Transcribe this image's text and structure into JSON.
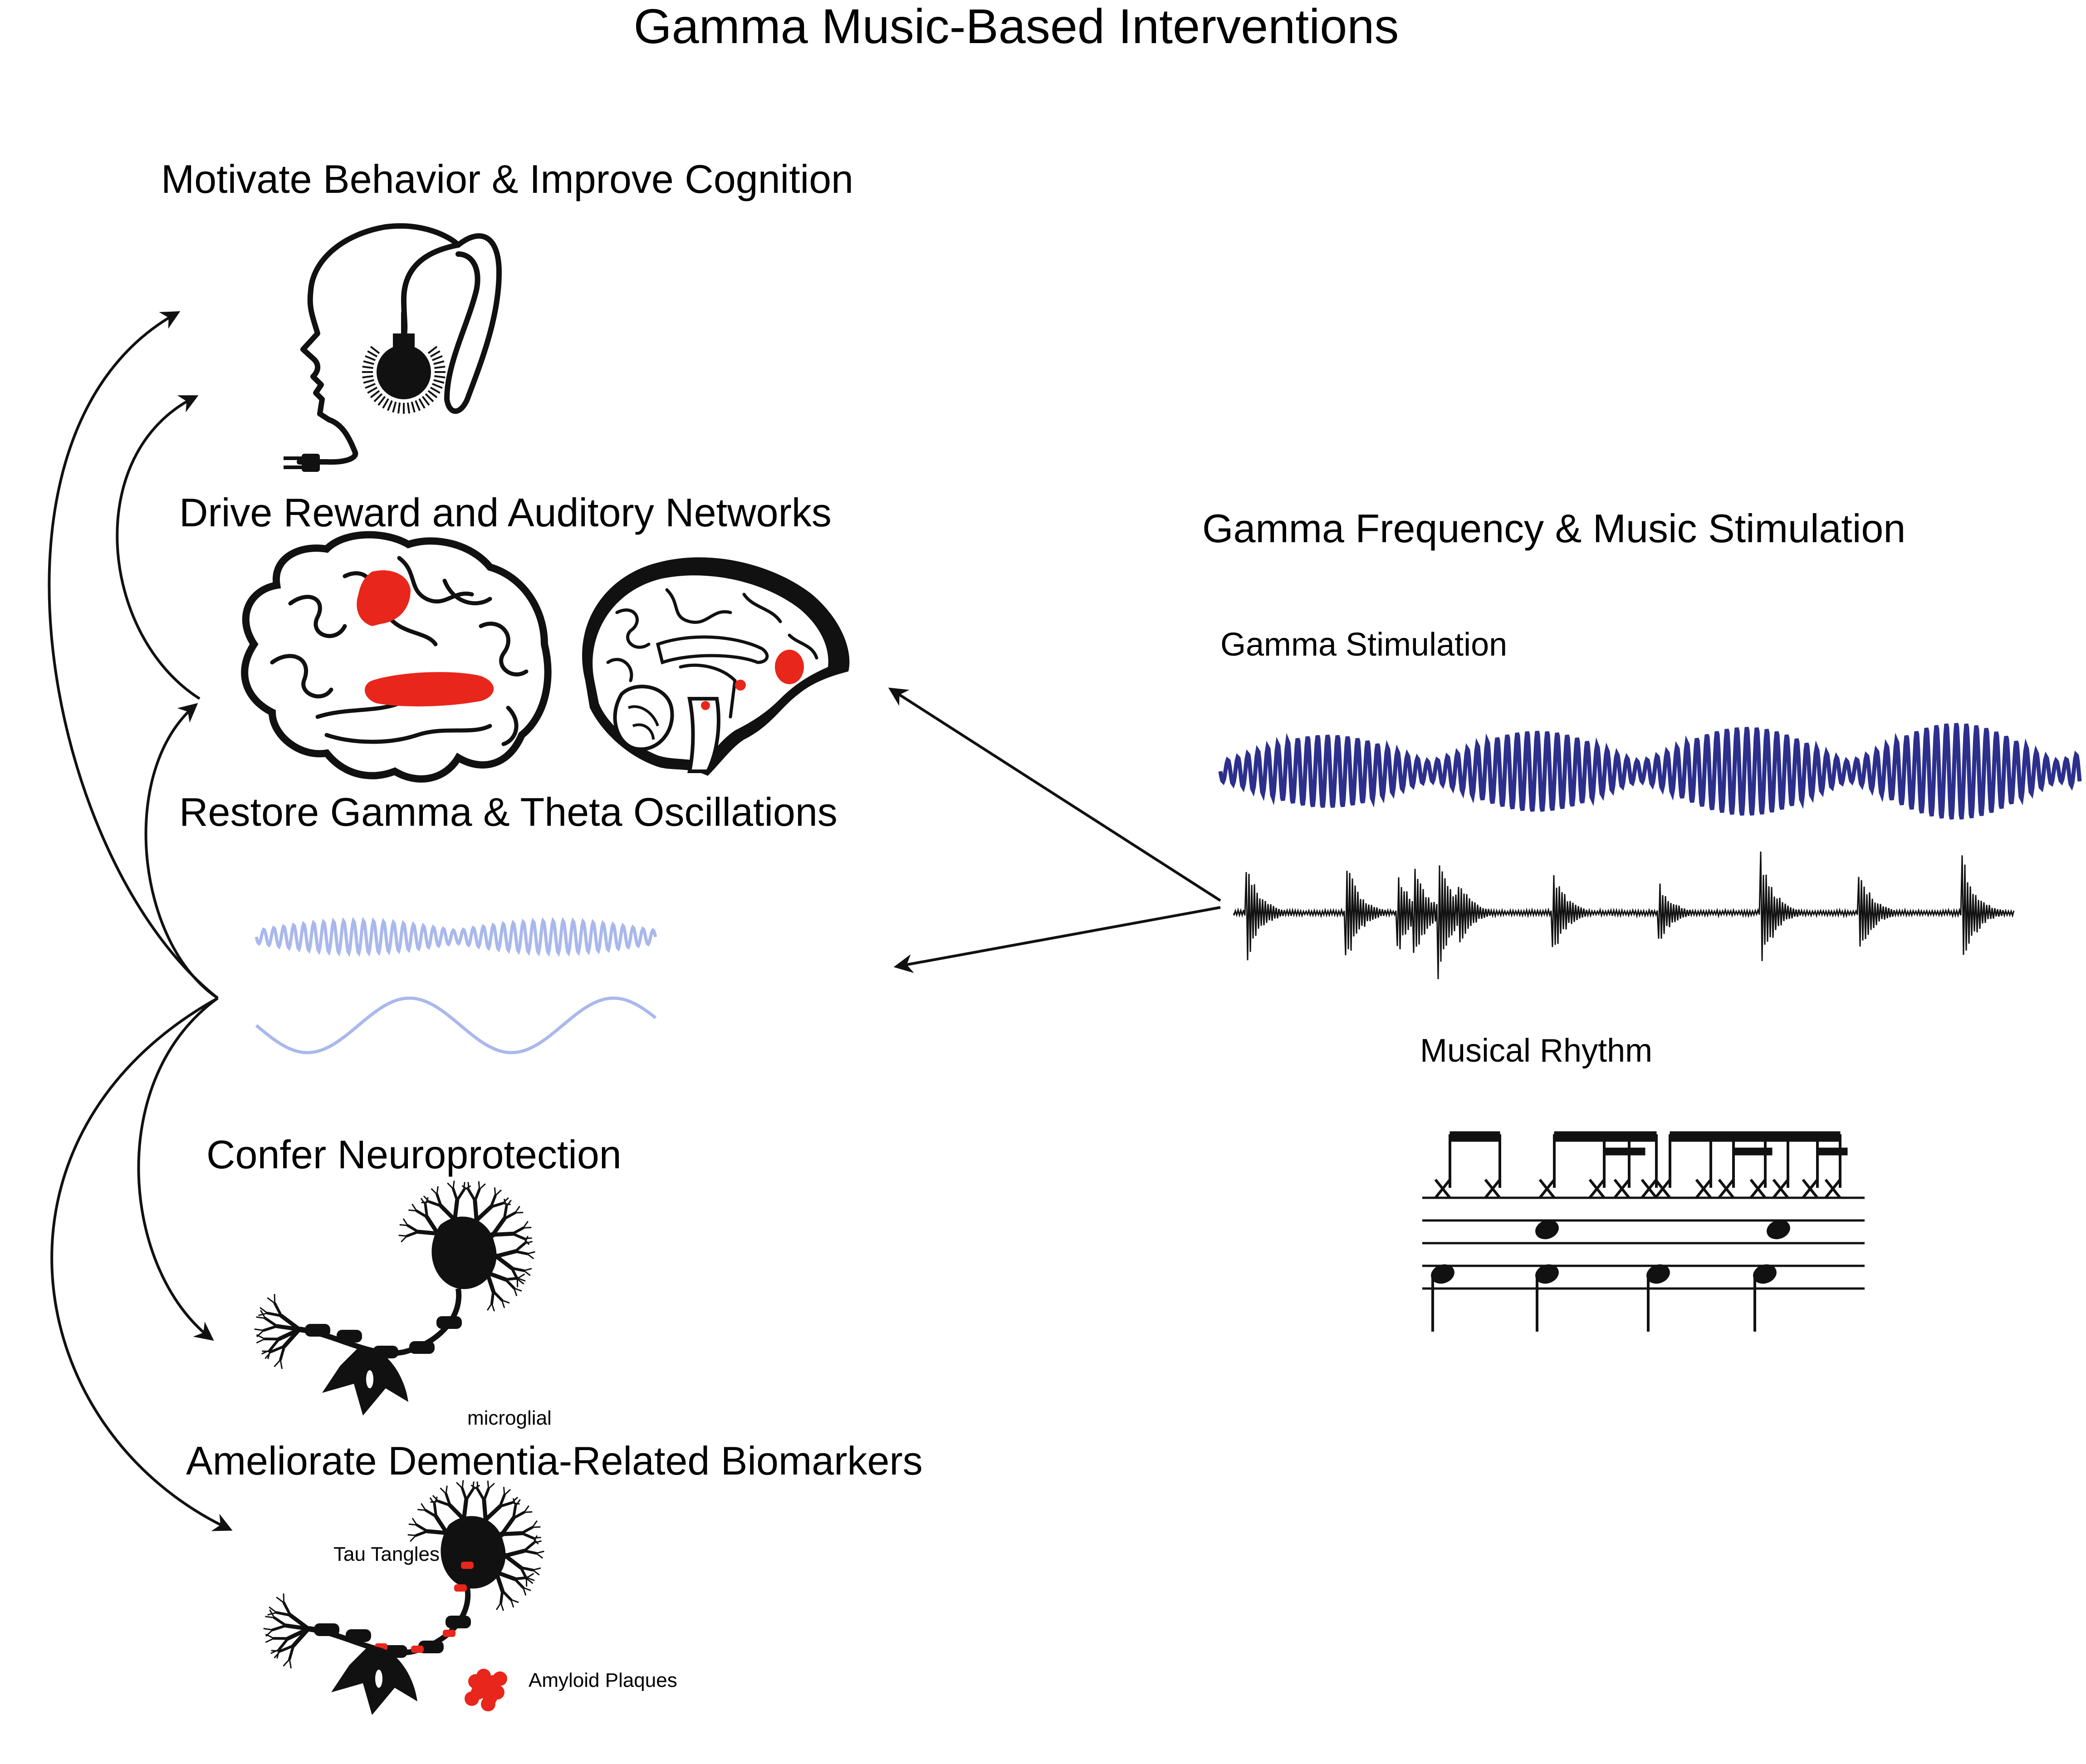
{
  "title": "Gamma Music-Based Interventions",
  "effects": {
    "cognition": "Motivate Behavior & Improve Cognition",
    "reward": "Drive Reward and Auditory Networks",
    "oscillations": "Restore Gamma & Theta Oscillations",
    "neuroprotection": "Confer Neuroprotection",
    "biomarkers": "Ameliorate Dementia-Related Biomarkers"
  },
  "labels": {
    "microglial": "microglial",
    "tau": "Tau Tangles",
    "amyloid": "Amyloid Plaques"
  },
  "stimulation": {
    "heading": "Gamma Frequency & Music Stimulation",
    "gamma": "Gamma Stimulation",
    "rhythm": "Musical Rhythm"
  },
  "colors": {
    "gamma_wave": "#2c2f8c",
    "oscillation_wave": "#a9b8ec",
    "highlight": "#e8261b",
    "ink": "#111111"
  }
}
